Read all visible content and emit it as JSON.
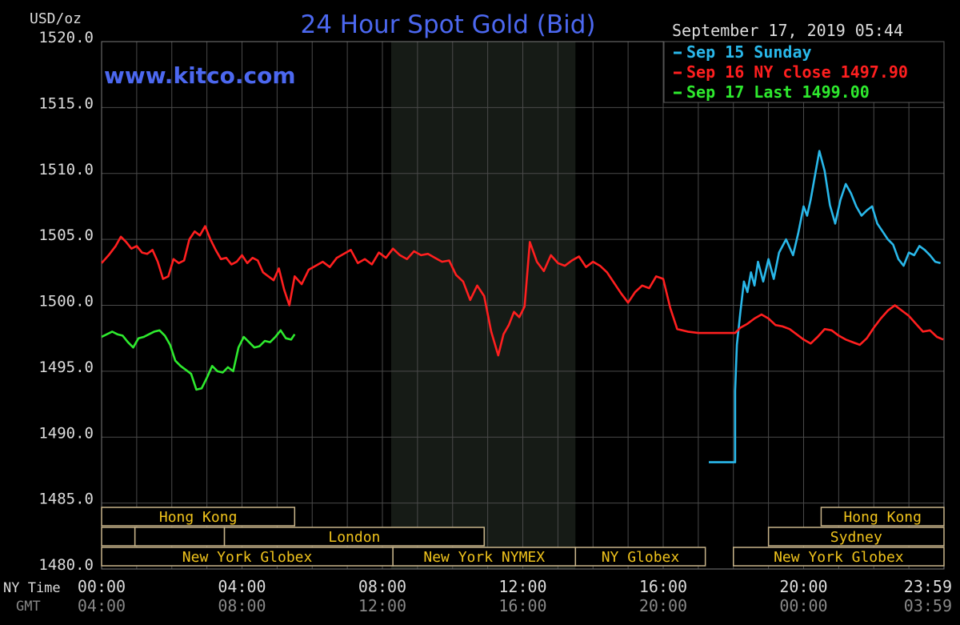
{
  "chart_data": {
    "type": "line",
    "title": "24 Hour Spot Gold (Bid)",
    "watermark": "www.kitco.com",
    "timestamp": "September 17, 2019 05:44",
    "y_unit_label": "USD/oz",
    "ylim": [
      1480.0,
      1520.0
    ],
    "y_ticks": [
      "1520.0",
      "1515.0",
      "1510.0",
      "1505.0",
      "1500.0",
      "1495.0",
      "1490.0",
      "1485.0",
      "1480.0"
    ],
    "y_tick_values": [
      1520,
      1515,
      1510,
      1505,
      1500,
      1495,
      1490,
      1485,
      1480
    ],
    "xlim_hours": [
      0,
      24
    ],
    "x_row_labels": {
      "ny": "NY Time",
      "gmt": "GMT"
    },
    "x_ticks_ny": [
      {
        "h": 0,
        "label": "00:00"
      },
      {
        "h": 4,
        "label": "04:00"
      },
      {
        "h": 8,
        "label": "08:00"
      },
      {
        "h": 12,
        "label": "12:00"
      },
      {
        "h": 16,
        "label": "16:00"
      },
      {
        "h": 20,
        "label": "20:00"
      },
      {
        "h": 23.983,
        "label": "23:59"
      }
    ],
    "x_ticks_gmt": [
      {
        "h": 0,
        "label": "04:00"
      },
      {
        "h": 4,
        "label": "08:00"
      },
      {
        "h": 8,
        "label": "12:00"
      },
      {
        "h": 12,
        "label": "16:00"
      },
      {
        "h": 16,
        "label": "20:00"
      },
      {
        "h": 20,
        "label": "00:00"
      },
      {
        "h": 23.983,
        "label": "03:59"
      }
    ],
    "shaded_region_hours": [
      8.25,
      13.5
    ],
    "grid": true,
    "legend": [
      {
        "label": "Sep 15 Sunday",
        "color": "#29b8ea"
      },
      {
        "label": "Sep 16 NY close 1497.90",
        "color": "#ff1f1f"
      },
      {
        "label": "Sep 17 Last 1499.00",
        "color": "#2eea2e"
      }
    ],
    "legend_position": "top-right",
    "sessions": [
      {
        "label": "Hong Kong",
        "row": 0,
        "start": 0,
        "end": 5.5
      },
      {
        "label": "",
        "row": 1,
        "start": 0,
        "end": 0.95
      },
      {
        "label": "",
        "row": 1,
        "start": 0.95,
        "end": 3.5
      },
      {
        "label": "London",
        "row": 1,
        "start": 3.5,
        "end": 10.9
      },
      {
        "label": "New York Globex",
        "row": 2,
        "start": 0,
        "end": 8.3
      },
      {
        "label": "New York NYMEX",
        "row": 2,
        "start": 8.3,
        "end": 13.5
      },
      {
        "label": "NY Globex",
        "row": 2,
        "start": 13.5,
        "end": 17.2
      },
      {
        "label": "Hong Kong",
        "row": 0,
        "start": 20.5,
        "end": 24
      },
      {
        "label": "Sydney",
        "row": 1,
        "start": 19,
        "end": 24
      },
      {
        "label": "New York Globex",
        "row": 2,
        "start": 18.0,
        "end": 24
      }
    ],
    "series": [
      {
        "name": "Sep 15 Sunday",
        "color": "#29b8ea",
        "x": [
          17.3,
          18.05,
          18.05,
          18.1,
          18.2,
          18.3,
          18.4,
          18.5,
          18.6,
          18.7,
          18.85,
          19.0,
          19.15,
          19.3,
          19.5,
          19.7,
          19.85,
          20.0,
          20.1,
          20.2,
          20.3,
          20.45,
          20.6,
          20.75,
          20.9,
          21.05,
          21.2,
          21.35,
          21.5,
          21.65,
          21.8,
          21.95,
          22.1,
          22.25,
          22.4,
          22.55,
          22.7,
          22.85,
          23.0,
          23.15,
          23.3,
          23.45,
          23.6,
          23.75,
          23.9
        ],
        "y": [
          1488.1,
          1488.1,
          1493.5,
          1497.0,
          1499.5,
          1501.8,
          1501.0,
          1502.5,
          1501.5,
          1503.3,
          1501.8,
          1503.5,
          1502.0,
          1504.0,
          1505.0,
          1503.8,
          1505.5,
          1507.5,
          1506.8,
          1508.0,
          1509.5,
          1511.7,
          1510.2,
          1507.6,
          1506.2,
          1508.0,
          1509.2,
          1508.5,
          1507.5,
          1506.8,
          1507.2,
          1507.5,
          1506.2,
          1505.6,
          1505.0,
          1504.6,
          1503.5,
          1503.0,
          1504.0,
          1503.8,
          1504.5,
          1504.2,
          1503.8,
          1503.3,
          1503.2
        ]
      },
      {
        "name": "Sep 16 NY close 1497.90",
        "color": "#ff1f1f",
        "x": [
          0,
          0.2,
          0.4,
          0.55,
          0.7,
          0.85,
          1.0,
          1.15,
          1.3,
          1.45,
          1.6,
          1.75,
          1.9,
          2.05,
          2.2,
          2.35,
          2.5,
          2.65,
          2.8,
          2.95,
          3.1,
          3.25,
          3.4,
          3.55,
          3.7,
          3.85,
          4.0,
          4.15,
          4.3,
          4.45,
          4.6,
          4.75,
          4.9,
          5.05,
          5.2,
          5.35,
          5.5,
          5.7,
          5.9,
          6.1,
          6.3,
          6.5,
          6.7,
          6.9,
          7.1,
          7.3,
          7.5,
          7.7,
          7.9,
          8.1,
          8.3,
          8.5,
          8.7,
          8.9,
          9.1,
          9.3,
          9.5,
          9.7,
          9.9,
          10.1,
          10.3,
          10.5,
          10.7,
          10.9,
          11.1,
          11.3,
          11.45,
          11.6,
          11.75,
          11.9,
          12.05,
          12.2,
          12.4,
          12.6,
          12.8,
          13.0,
          13.2,
          13.4,
          13.6,
          13.8,
          14.0,
          14.2,
          14.4,
          14.6,
          14.8,
          15.0,
          15.2,
          15.4,
          15.6,
          15.8,
          16.0,
          16.2,
          16.4,
          16.7,
          17.0,
          17.3,
          17.6,
          17.9,
          18.05,
          18.2,
          18.4,
          18.6,
          18.8,
          19.0,
          19.2,
          19.4,
          19.6,
          19.8,
          20.0,
          20.2,
          20.4,
          20.6,
          20.8,
          21.0,
          21.2,
          21.4,
          21.6,
          21.8,
          22.0,
          22.2,
          22.4,
          22.6,
          22.8,
          23.0,
          23.2,
          23.4,
          23.6,
          23.8,
          23.98
        ],
        "y": [
          1503.2,
          1503.8,
          1504.5,
          1505.2,
          1504.8,
          1504.3,
          1504.5,
          1504.0,
          1503.9,
          1504.2,
          1503.3,
          1502.0,
          1502.2,
          1503.5,
          1503.2,
          1503.4,
          1505.0,
          1505.6,
          1505.3,
          1506.0,
          1505.0,
          1504.2,
          1503.5,
          1503.6,
          1503.1,
          1503.3,
          1503.8,
          1503.2,
          1503.6,
          1503.4,
          1502.5,
          1502.2,
          1501.9,
          1502.8,
          1501.2,
          1500.0,
          1502.2,
          1501.6,
          1502.7,
          1503.0,
          1503.3,
          1502.9,
          1503.6,
          1503.9,
          1504.2,
          1503.2,
          1503.5,
          1503.1,
          1504.0,
          1503.6,
          1504.3,
          1503.8,
          1503.5,
          1504.1,
          1503.8,
          1503.9,
          1503.6,
          1503.3,
          1503.4,
          1502.3,
          1501.8,
          1500.4,
          1501.5,
          1500.7,
          1498.0,
          1496.2,
          1497.8,
          1498.5,
          1499.5,
          1499.1,
          1499.9,
          1504.8,
          1503.3,
          1502.6,
          1503.8,
          1503.2,
          1503.0,
          1503.4,
          1503.7,
          1502.9,
          1503.3,
          1503.0,
          1502.5,
          1501.7,
          1500.9,
          1500.2,
          1501.0,
          1501.5,
          1501.3,
          1502.2,
          1502.0,
          1499.8,
          1498.2,
          1498.0,
          1497.9,
          1497.9,
          1497.9,
          1497.9,
          1497.9,
          1498.3,
          1498.6,
          1499.0,
          1499.3,
          1499.0,
          1498.5,
          1498.4,
          1498.2,
          1497.8,
          1497.4,
          1497.1,
          1497.6,
          1498.2,
          1498.1,
          1497.7,
          1497.4,
          1497.2,
          1497.0,
          1497.5,
          1498.3,
          1499.0,
          1499.6,
          1500.0,
          1499.6,
          1499.2,
          1498.6,
          1498.0,
          1498.1,
          1497.6,
          1497.4
        ]
      },
      {
        "name": "Sep 17 Last 1499.00",
        "color": "#2eea2e",
        "x": [
          0,
          0.15,
          0.3,
          0.45,
          0.6,
          0.75,
          0.9,
          1.05,
          1.2,
          1.35,
          1.5,
          1.65,
          1.8,
          1.95,
          2.1,
          2.25,
          2.4,
          2.55,
          2.7,
          2.85,
          3.0,
          3.15,
          3.3,
          3.45,
          3.6,
          3.75,
          3.9,
          4.05,
          4.2,
          4.35,
          4.5,
          4.65,
          4.8,
          4.95,
          5.1,
          5.25,
          5.4,
          5.5
        ],
        "y": [
          1497.6,
          1497.8,
          1498.0,
          1497.8,
          1497.7,
          1497.2,
          1496.8,
          1497.5,
          1497.6,
          1497.8,
          1498.0,
          1498.1,
          1497.7,
          1497.0,
          1495.8,
          1495.4,
          1495.1,
          1494.8,
          1493.6,
          1493.7,
          1494.5,
          1495.4,
          1495.0,
          1494.9,
          1495.3,
          1495.0,
          1496.8,
          1497.6,
          1497.2,
          1496.8,
          1496.9,
          1497.3,
          1497.2,
          1497.6,
          1498.1,
          1497.5,
          1497.4,
          1497.8
        ]
      }
    ]
  }
}
